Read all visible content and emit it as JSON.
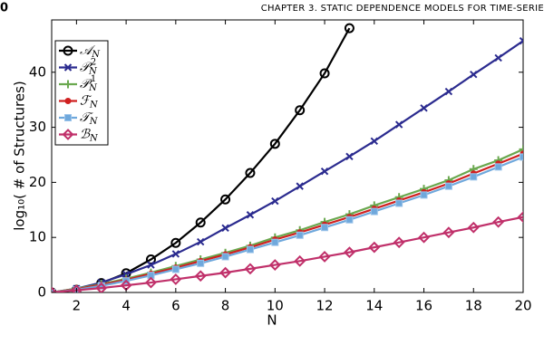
{
  "page_header": {
    "page_number": "0",
    "running_title": "CHAPTER 3.  STATIC DEPENDENCE MODELS FOR TIME-SERIE"
  },
  "chart_data": {
    "type": "line",
    "x_label": "N",
    "y_label": "log₁₀( # of Structures)",
    "x": [
      1,
      2,
      3,
      4,
      5,
      6,
      7,
      8,
      9,
      10,
      11,
      12,
      13,
      14,
      15,
      16,
      17,
      18,
      19,
      20
    ],
    "xlim": [
      1,
      20
    ],
    "xticks": [
      2,
      4,
      6,
      8,
      10,
      12,
      14,
      16,
      18,
      20
    ],
    "ylim": [
      0,
      49.5
    ],
    "yticks": [
      0,
      10,
      20,
      30,
      40
    ],
    "grid": false,
    "legend": "upper left",
    "series": [
      {
        "name": "𝒜N",
        "color": "#000000",
        "marker": "circle",
        "values": [
          0,
          0.5,
          1.7,
          3.5,
          6,
          9,
          12.7,
          16.9,
          21.7,
          27,
          33.1,
          39.8,
          48,
          null,
          null,
          null,
          null,
          null,
          null,
          null
        ]
      },
      {
        "name": "𝒫N2",
        "color": "#2b2b8f",
        "marker": "x",
        "values": [
          0,
          0.7,
          1.8,
          3.3,
          5,
          7,
          9.2,
          11.7,
          14.1,
          16.6,
          19.3,
          22,
          24.7,
          27.5,
          30.5,
          33.5,
          36.5,
          39.6,
          42.6,
          45.7
        ]
      },
      {
        "name": "𝒫N1",
        "color": "#6aa84f",
        "marker": "plus",
        "values": [
          0,
          0.7,
          1.5,
          2.5,
          3.6,
          4.8,
          6,
          7.2,
          8.5,
          10,
          11.3,
          12.8,
          14.2,
          15.8,
          17.3,
          18.8,
          20.4,
          22.4,
          24,
          26
        ]
      },
      {
        "name": "ℱN",
        "color": "#d02020",
        "marker": "dot",
        "values": [
          0,
          0.6,
          1.4,
          2.3,
          3.4,
          4.5,
          5.7,
          6.9,
          8.2,
          9.6,
          10.9,
          12.3,
          13.7,
          15.2,
          16.7,
          18.2,
          19.8,
          21.6,
          23.4,
          25.2
        ]
      },
      {
        "name": "𝒯N",
        "color": "#6fa8dc",
        "marker": "square",
        "values": [
          0,
          0.5,
          1.2,
          2.1,
          3.1,
          4.2,
          5.3,
          6.5,
          7.8,
          9.1,
          10.4,
          11.8,
          13.2,
          14.7,
          16.2,
          17.7,
          19.3,
          21,
          22.8,
          24.6
        ]
      },
      {
        "name": "ℬN",
        "color": "#c0306a",
        "marker": "diamond",
        "values": [
          0,
          0.4,
          0.8,
          1.3,
          1.8,
          2.4,
          3,
          3.6,
          4.3,
          5,
          5.7,
          6.5,
          7.3,
          8.2,
          9.1,
          10,
          10.9,
          11.8,
          12.8,
          13.7
        ]
      }
    ]
  }
}
